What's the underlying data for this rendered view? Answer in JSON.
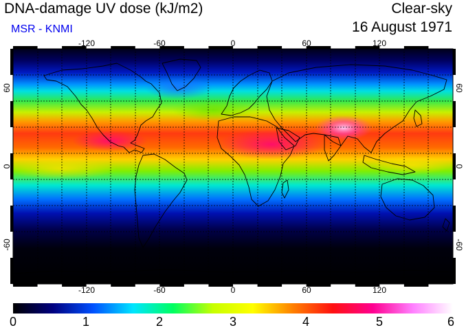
{
  "header": {
    "title": "DNA-damage UV dose (kJ/m2)",
    "subtitle": "MSR - KNMI",
    "condition": "Clear-sky",
    "date": "16 August 1971"
  },
  "colors": {
    "subtitle": "#0000ee",
    "gridline": "#000000",
    "coastline": "#000000"
  },
  "map": {
    "projection": "equirectangular",
    "lon_range": [
      -180,
      180
    ],
    "lat_range": [
      -90,
      90
    ],
    "lon_ticks": [
      "-120",
      "-60",
      "0",
      "60",
      "120"
    ],
    "lat_ticks": [
      "60",
      "0",
      "-60"
    ],
    "gridlines": "dashed, every 20 degrees"
  },
  "colorbar": {
    "range": [
      0,
      6
    ],
    "labels": [
      "0",
      "1",
      "2",
      "3",
      "4",
      "5",
      "6"
    ],
    "colormap": [
      "#000000",
      "#000080",
      "#0050ff",
      "#00e5ff",
      "#00ff60",
      "#c8ff00",
      "#ffff00",
      "#ff8000",
      "#ff1010",
      "#ff0090",
      "#ff80ff",
      "#ffffff"
    ]
  }
}
